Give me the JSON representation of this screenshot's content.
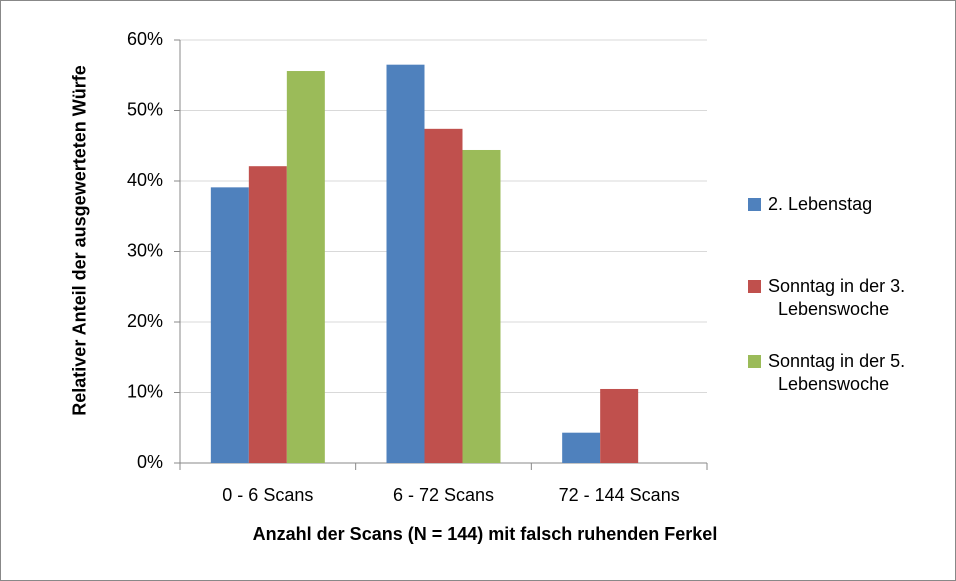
{
  "chart_data": {
    "type": "bar",
    "x_label": "Anzahl der Scans (N = 144) mit falsch ruhenden Ferkel",
    "y_label": "Relativer Anteil der ausgewerteten Würfe",
    "categories": [
      "0 - 6 Scans",
      "6 - 72 Scans",
      "72 - 144 Scans"
    ],
    "series": [
      {
        "name": "2. Lebenstag",
        "color": "#4f81bd",
        "values": [
          39.1,
          56.5,
          4.3
        ]
      },
      {
        "name": "Sonntag in der 3. Lebenswoche",
        "color": "#c0504d",
        "values": [
          42.1,
          47.4,
          10.5
        ]
      },
      {
        "name": "Sonntag in der 5. Lebenswoche",
        "color": "#9bbb59",
        "values": [
          55.6,
          44.4,
          0
        ]
      }
    ],
    "ylim": [
      0,
      60
    ],
    "yticks": [
      {
        "value": 0,
        "label": "0%"
      },
      {
        "value": 10,
        "label": "10%"
      },
      {
        "value": 20,
        "label": "20%"
      },
      {
        "value": 30,
        "label": "30%"
      },
      {
        "value": 40,
        "label": "40%"
      },
      {
        "value": 50,
        "label": "50%"
      },
      {
        "value": 60,
        "label": "60%"
      }
    ],
    "grid": true,
    "legend": "right"
  }
}
